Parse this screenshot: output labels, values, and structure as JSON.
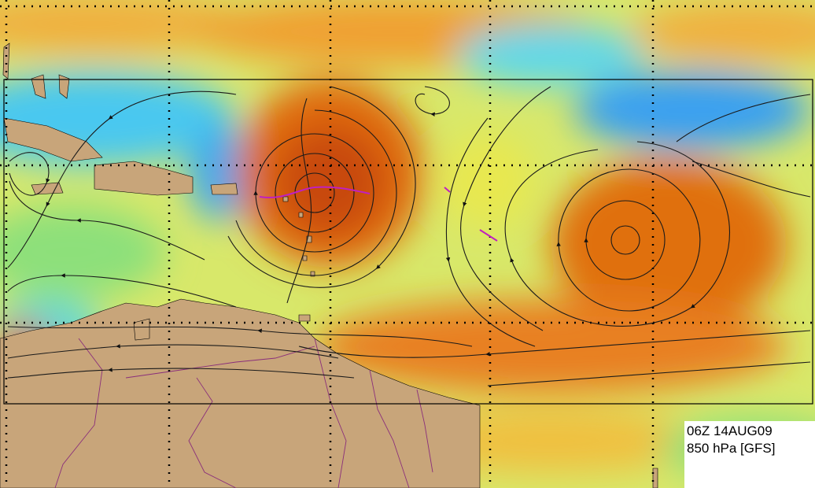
{
  "label": {
    "time": "06Z 14AUG09",
    "level": "850 hPa [GFS]"
  }
}
